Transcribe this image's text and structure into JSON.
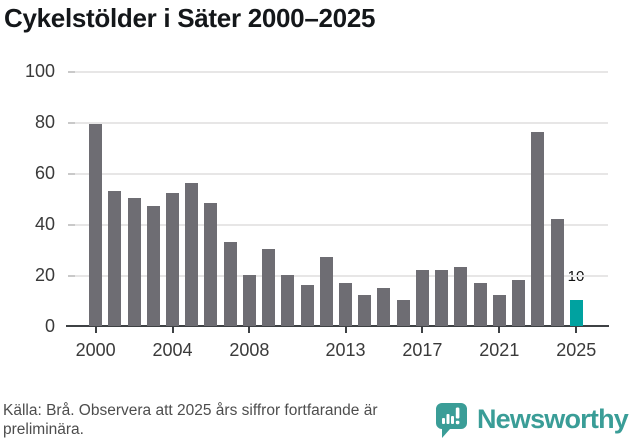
{
  "title": "Cykelstölder i Säter 2000–2025",
  "footer": {
    "source_note": "Källa: Brå. Observera att 2025 års siffror fortfarande är preliminära."
  },
  "branding": {
    "logo_text": "Newsworthy"
  },
  "chart_data": {
    "type": "bar",
    "title": "Cykelstölder i Säter 2000–2025",
    "categories": [
      2000,
      2001,
      2002,
      2003,
      2004,
      2005,
      2006,
      2007,
      2008,
      2009,
      2010,
      2011,
      2012,
      2013,
      2014,
      2015,
      2016,
      2017,
      2018,
      2019,
      2020,
      2021,
      2022,
      2023,
      2024,
      2025
    ],
    "values": [
      79,
      53,
      50,
      47,
      52,
      56,
      48,
      33,
      20,
      30,
      20,
      16,
      27,
      17,
      12,
      15,
      10,
      22,
      22,
      23,
      17,
      12,
      18,
      76,
      42,
      10
    ],
    "highlight": {
      "year": 2025,
      "value": 10,
      "label": "10"
    },
    "yticks": [
      0,
      20,
      40,
      60,
      80,
      100
    ],
    "xticks": [
      2000,
      2004,
      2008,
      2013,
      2017,
      2021,
      2025
    ],
    "ylim": [
      0,
      100
    ],
    "grid": "horizontal",
    "legend": "none",
    "xlabel": "",
    "ylabel": "",
    "colors": {
      "bar": "#6e6d73",
      "highlight": "#00a2a0"
    }
  }
}
